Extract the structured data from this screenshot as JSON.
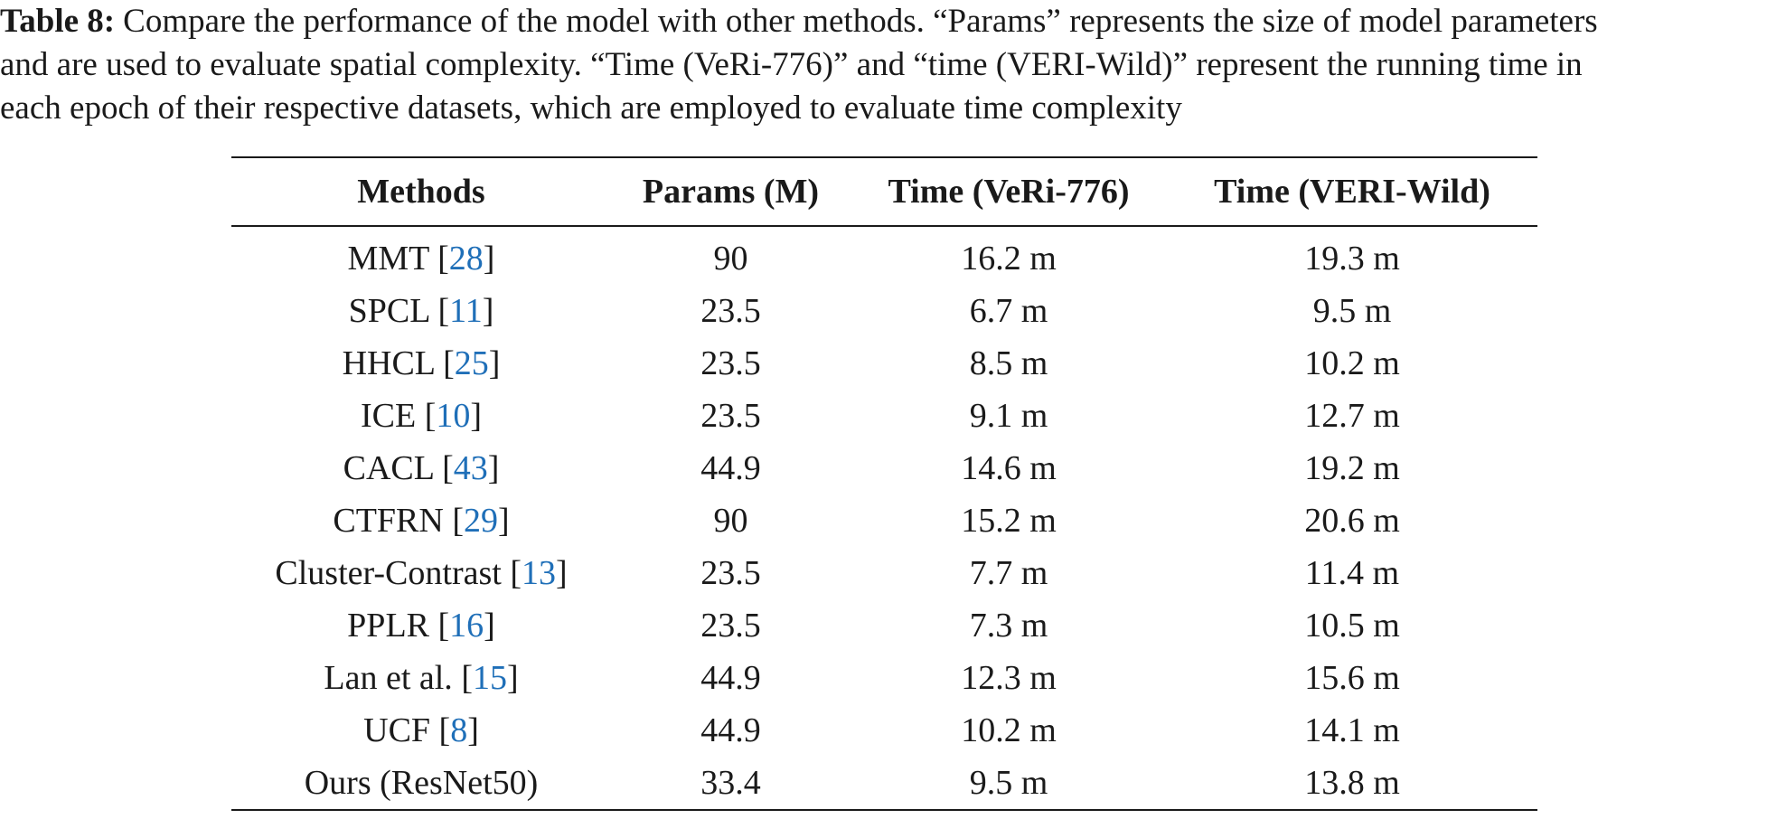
{
  "caption": {
    "label": "Table 8:",
    "lines": [
      "Compare the performance of the model with other methods. “Params” represents the size of model parameters",
      "and are used to evaluate spatial complexity. “Time (VeRi-776)” and “time (VERI-Wild)” represent the running time in",
      "each epoch of their respective datasets, which are employed to evaluate time complexity"
    ]
  },
  "table": {
    "headers": [
      "Methods",
      "Params (M)",
      "Time (VeRi-776)",
      "Time (VERI-Wild)"
    ],
    "rows": [
      {
        "method": "MMT",
        "ref": "28",
        "params": "90",
        "veri": "16.2 m",
        "wild": "19.3 m"
      },
      {
        "method": "SPCL",
        "ref": "11",
        "params": "23.5",
        "veri": "6.7 m",
        "wild": "9.5 m"
      },
      {
        "method": "HHCL",
        "ref": "25",
        "params": "23.5",
        "veri": "8.5 m",
        "wild": "10.2 m"
      },
      {
        "method": "ICE",
        "ref": "10",
        "params": "23.5",
        "veri": "9.1 m",
        "wild": "12.7 m"
      },
      {
        "method": "CACL",
        "ref": "43",
        "params": "44.9",
        "veri": "14.6 m",
        "wild": "19.2 m"
      },
      {
        "method": "CTFRN",
        "ref": "29",
        "params": "90",
        "veri": "15.2 m",
        "wild": "20.6 m"
      },
      {
        "method": "Cluster-Contrast",
        "ref": "13",
        "params": "23.5",
        "veri": "7.7 m",
        "wild": "11.4 m"
      },
      {
        "method": "PPLR",
        "ref": "16",
        "params": "23.5",
        "veri": "7.3 m",
        "wild": "10.5 m"
      },
      {
        "method": "Lan et al.",
        "ref": "15",
        "params": "44.9",
        "veri": "12.3 m",
        "wild": "15.6 m"
      },
      {
        "method": "UCF",
        "ref": "8",
        "params": "44.9",
        "veri": "10.2 m",
        "wild": "14.1 m"
      },
      {
        "method": "Ours (ResNet50)",
        "ref": "",
        "params": "33.4",
        "veri": "9.5 m",
        "wild": "13.8 m"
      }
    ]
  },
  "colors": {
    "text": "#1a1a1a",
    "reference_link": "#1f6fb8"
  }
}
